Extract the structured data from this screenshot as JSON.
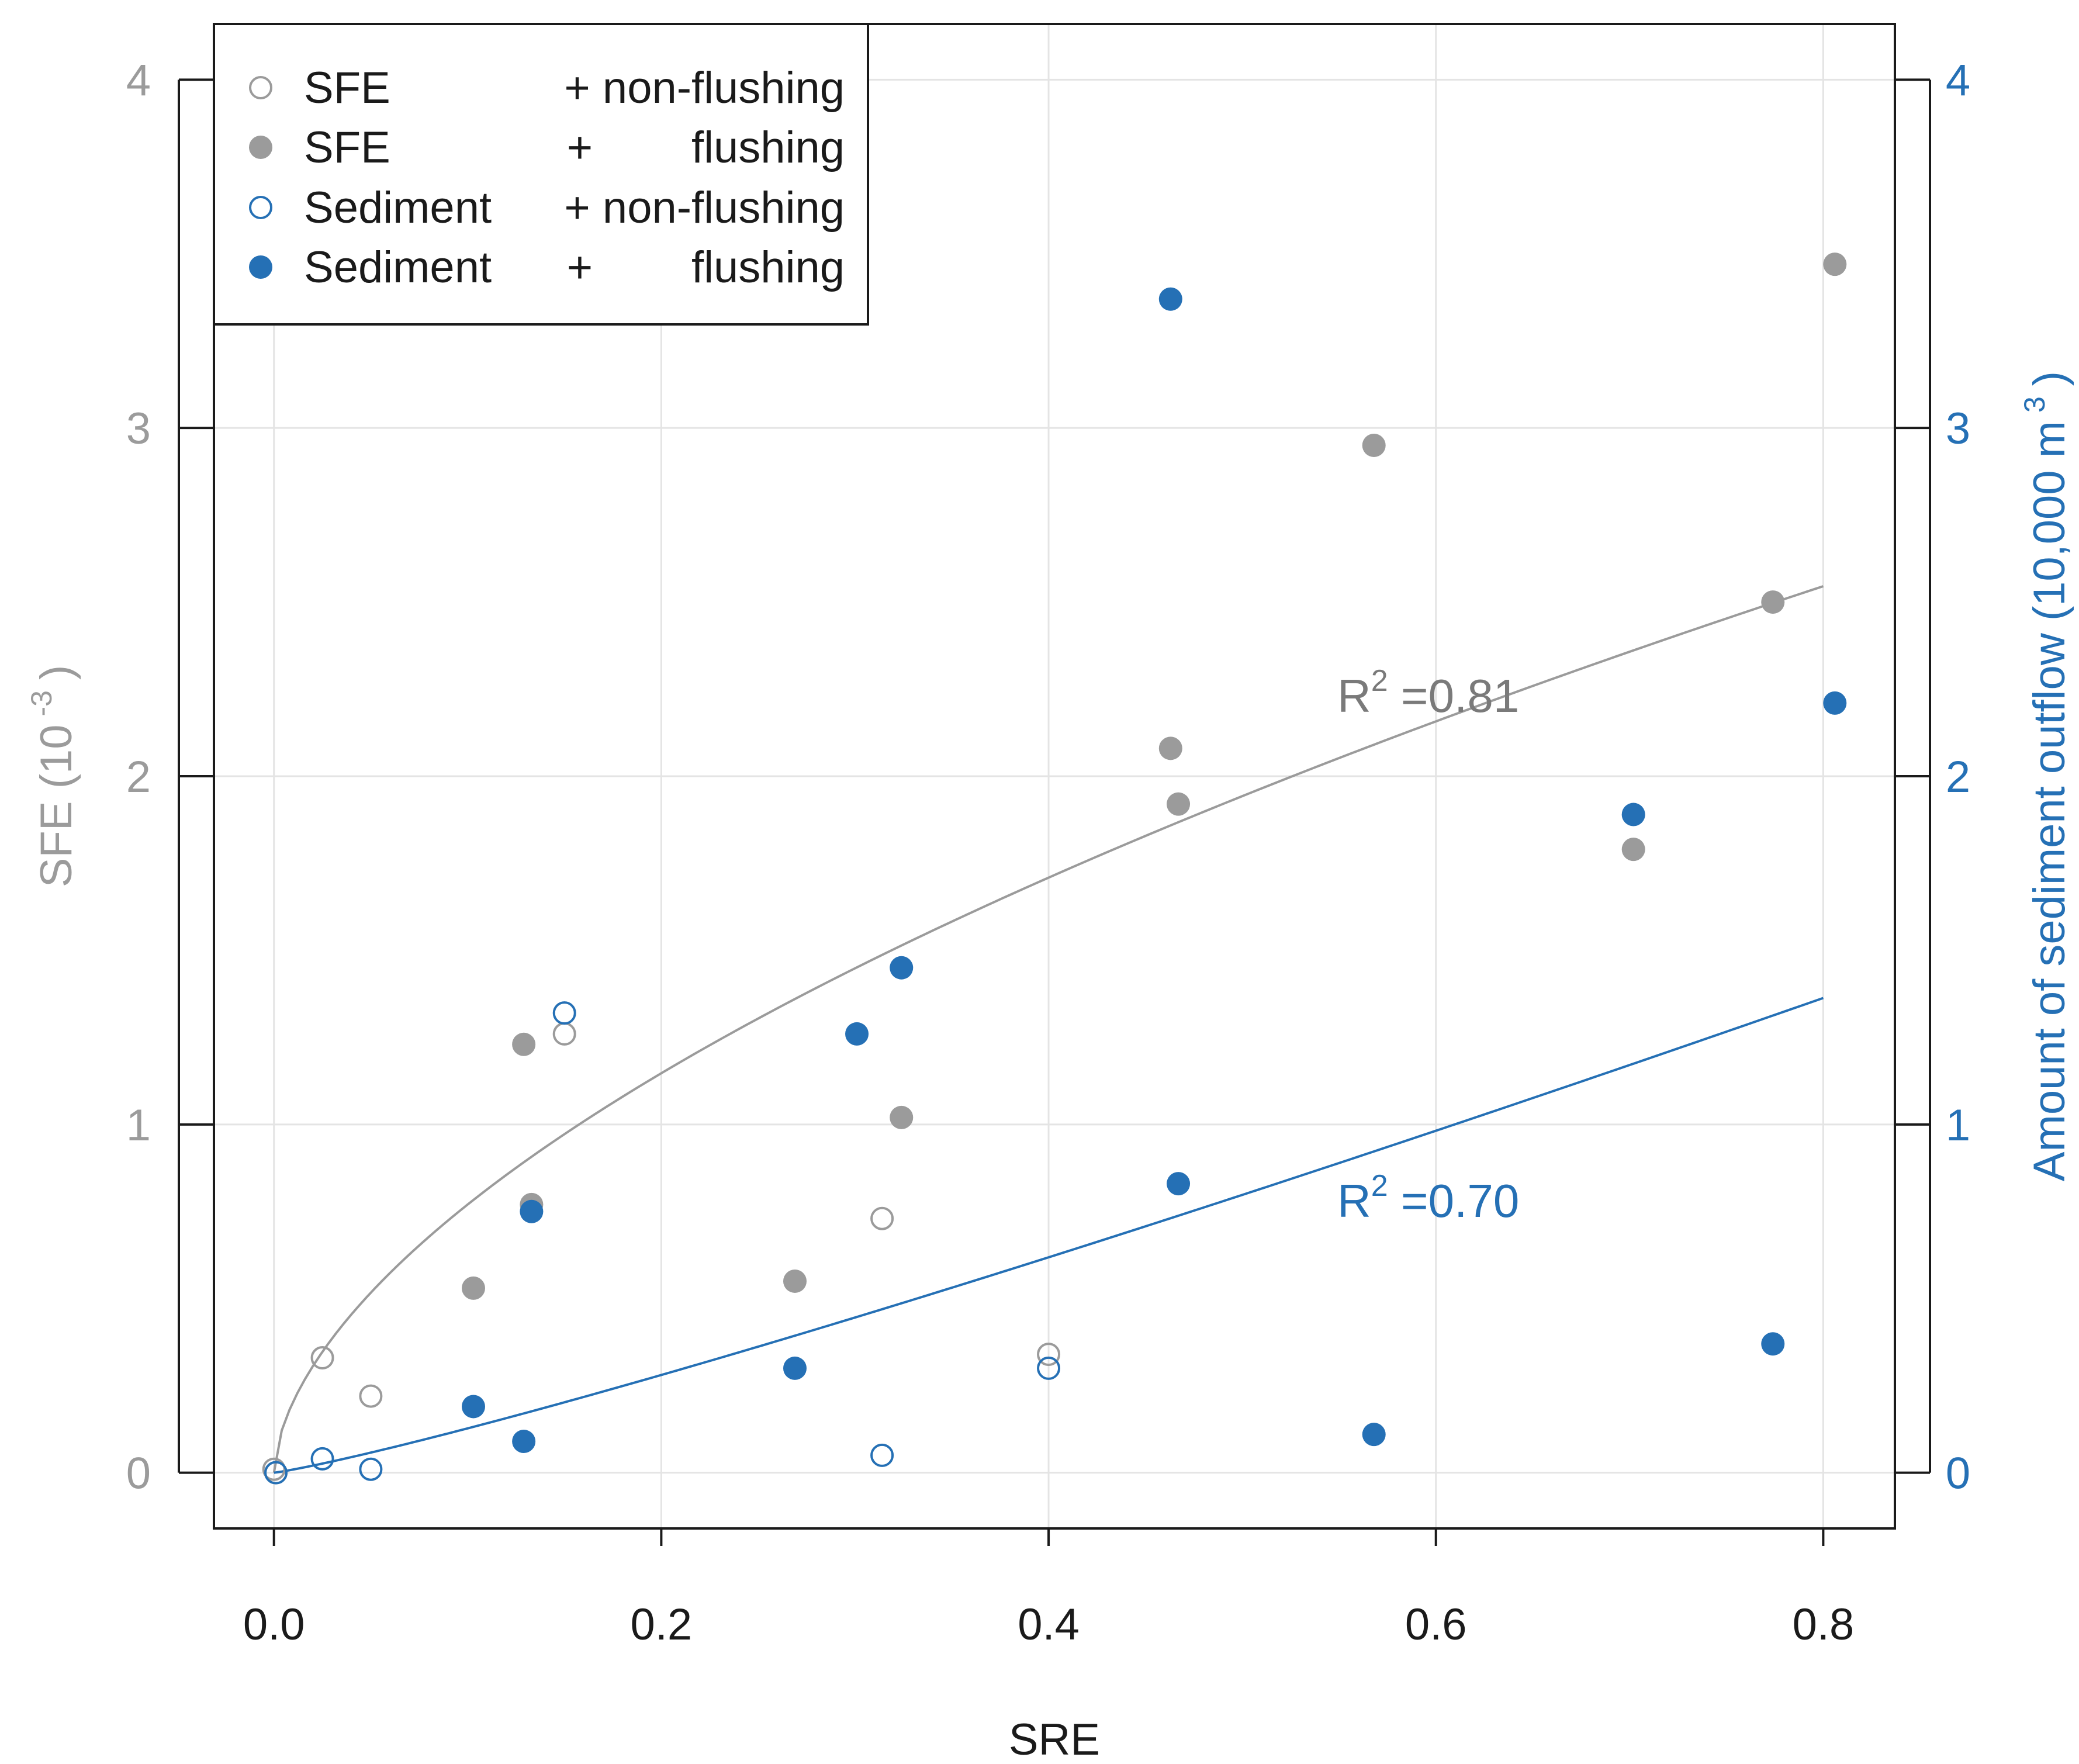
{
  "chart_data": {
    "type": "scatter",
    "xlabel": "SRE",
    "ylabel_left": "SFE (10",
    "ylabel_left_exp": "-3",
    "ylabel_left_close": ")",
    "ylabel_right": "Amount of sediment outflow (10,000 m",
    "ylabel_right_exp": "3",
    "ylabel_right_close": ")",
    "xlim": [
      -0.031,
      0.837
    ],
    "ylim": [
      -0.16,
      4.16
    ],
    "x_ticks": [
      0.0,
      0.2,
      0.4,
      0.6,
      0.8
    ],
    "x_tick_labels": [
      "0.0",
      "0.2",
      "0.4",
      "0.6",
      "0.8"
    ],
    "y_ticks": [
      0,
      1,
      2,
      3,
      4
    ],
    "y_left_tick_labels": [
      "0",
      "1",
      "2",
      "3",
      "4"
    ],
    "y_right_tick_labels": [
      "0",
      "1",
      "2",
      "3",
      "4"
    ],
    "grid": true,
    "colors": {
      "sfe": "#9b9b9b",
      "sediment": "#2570b5",
      "text": "#1a1a1a",
      "sfe_text": "#7a7a7a",
      "grid": "#e4e4e4"
    },
    "legend": {
      "position": "top-left",
      "entries": [
        {
          "label_a": "SFE",
          "label_b": "+ non-flushing",
          "series": "sfe_nonflushing"
        },
        {
          "label_a": "SFE",
          "label_b": "+        flushing",
          "series": "sfe_flushing"
        },
        {
          "label_a": "Sediment",
          "label_b": "+ non-flushing",
          "series": "sed_nonflushing"
        },
        {
          "label_a": "Sediment",
          "label_b": "+        flushing",
          "series": "sed_flushing"
        }
      ]
    },
    "series": [
      {
        "id": "sfe_nonflushing",
        "name": "SFE + non-flushing",
        "color": "#9b9b9b",
        "filled": false,
        "x": [
          0.0,
          0.001,
          0.025,
          0.05,
          0.15,
          0.314,
          0.4
        ],
        "y": [
          0.01,
          0.0,
          0.33,
          0.22,
          1.26,
          0.73,
          0.34
        ]
      },
      {
        "id": "sfe_flushing",
        "name": "SFE + flushing",
        "color": "#9b9b9b",
        "filled": true,
        "x": [
          0.103,
          0.129,
          0.133,
          0.269,
          0.324,
          0.463,
          0.467,
          0.568,
          0.702,
          0.774,
          0.806
        ],
        "y": [
          0.53,
          1.23,
          0.77,
          0.55,
          1.02,
          2.08,
          1.92,
          2.95,
          1.79,
          2.5,
          3.47
        ]
      },
      {
        "id": "sed_nonflushing",
        "name": "Sediment + non-flushing",
        "color": "#2570b5",
        "filled": false,
        "x": [
          0.001,
          0.025,
          0.05,
          0.15,
          0.314,
          0.4
        ],
        "y": [
          0.0,
          0.04,
          0.01,
          1.32,
          0.05,
          0.3
        ]
      },
      {
        "id": "sed_flushing",
        "name": "Sediment + flushing",
        "color": "#2570b5",
        "filled": true,
        "x": [
          0.103,
          0.129,
          0.133,
          0.269,
          0.301,
          0.324,
          0.463,
          0.467,
          0.568,
          0.702,
          0.774,
          0.806
        ],
        "y": [
          0.19,
          0.09,
          0.75,
          0.3,
          1.26,
          1.45,
          3.37,
          0.83,
          0.11,
          1.89,
          0.37,
          2.21
        ]
      }
    ],
    "fits": [
      {
        "id": "fit_sfe",
        "color": "#9b9b9b",
        "a": 2.894,
        "b": 0.575,
        "x_range": [
          0.0,
          0.8
        ]
      },
      {
        "id": "fit_sed",
        "color": "#2570b5",
        "a": 1.758,
        "b": 1.14,
        "x_range": [
          0.0,
          0.8
        ]
      }
    ],
    "annotations": [
      {
        "id": "r2_sfe",
        "prefix": "R",
        "sup": "2",
        "text": " =0.81",
        "x": 0.549,
        "y": 2.25,
        "color": "#7a7a7a"
      },
      {
        "id": "r2_sed",
        "prefix": "R",
        "sup": "2",
        "text": " =0.70",
        "x": 0.549,
        "y": 0.77,
        "color": "#2570b5"
      }
    ]
  }
}
